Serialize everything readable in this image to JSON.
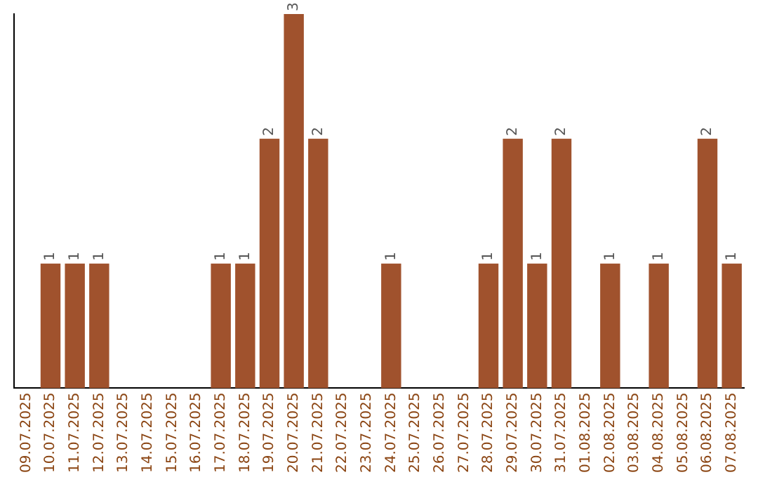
{
  "chart_data": {
    "type": "bar",
    "categories": [
      "09.07.2025",
      "10.07.2025",
      "11.07.2025",
      "12.07.2025",
      "13.07.2025",
      "14.07.2025",
      "15.07.2025",
      "16.07.2025",
      "17.07.2025",
      "18.07.2025",
      "19.07.2025",
      "20.07.2025",
      "21.07.2025",
      "22.07.2025",
      "23.07.2025",
      "24.07.2025",
      "25.07.2025",
      "26.07.2025",
      "27.07.2025",
      "28.07.2025",
      "29.07.2025",
      "30.07.2025",
      "31.07.2025",
      "01.08.2025",
      "02.08.2025",
      "03.08.2025",
      "04.08.2025",
      "05.08.2025",
      "06.08.2025",
      "07.08.2025"
    ],
    "values": [
      0,
      1,
      1,
      1,
      0,
      0,
      0,
      0,
      1,
      1,
      2,
      3,
      2,
      0,
      0,
      1,
      0,
      0,
      0,
      1,
      2,
      1,
      2,
      0,
      1,
      0,
      1,
      0,
      2,
      1
    ],
    "value_labels": [
      null,
      "1",
      "1",
      "1",
      null,
      null,
      null,
      null,
      "1",
      "1",
      "2",
      "3",
      "2",
      null,
      null,
      "1",
      null,
      null,
      null,
      "1",
      "2",
      "1",
      "2",
      null,
      "1",
      null,
      "1",
      null,
      "2",
      "1"
    ],
    "color": "#a0522d",
    "ylim": [
      0,
      3
    ],
    "grid": false,
    "legend": false,
    "tick_labels": "x"
  }
}
